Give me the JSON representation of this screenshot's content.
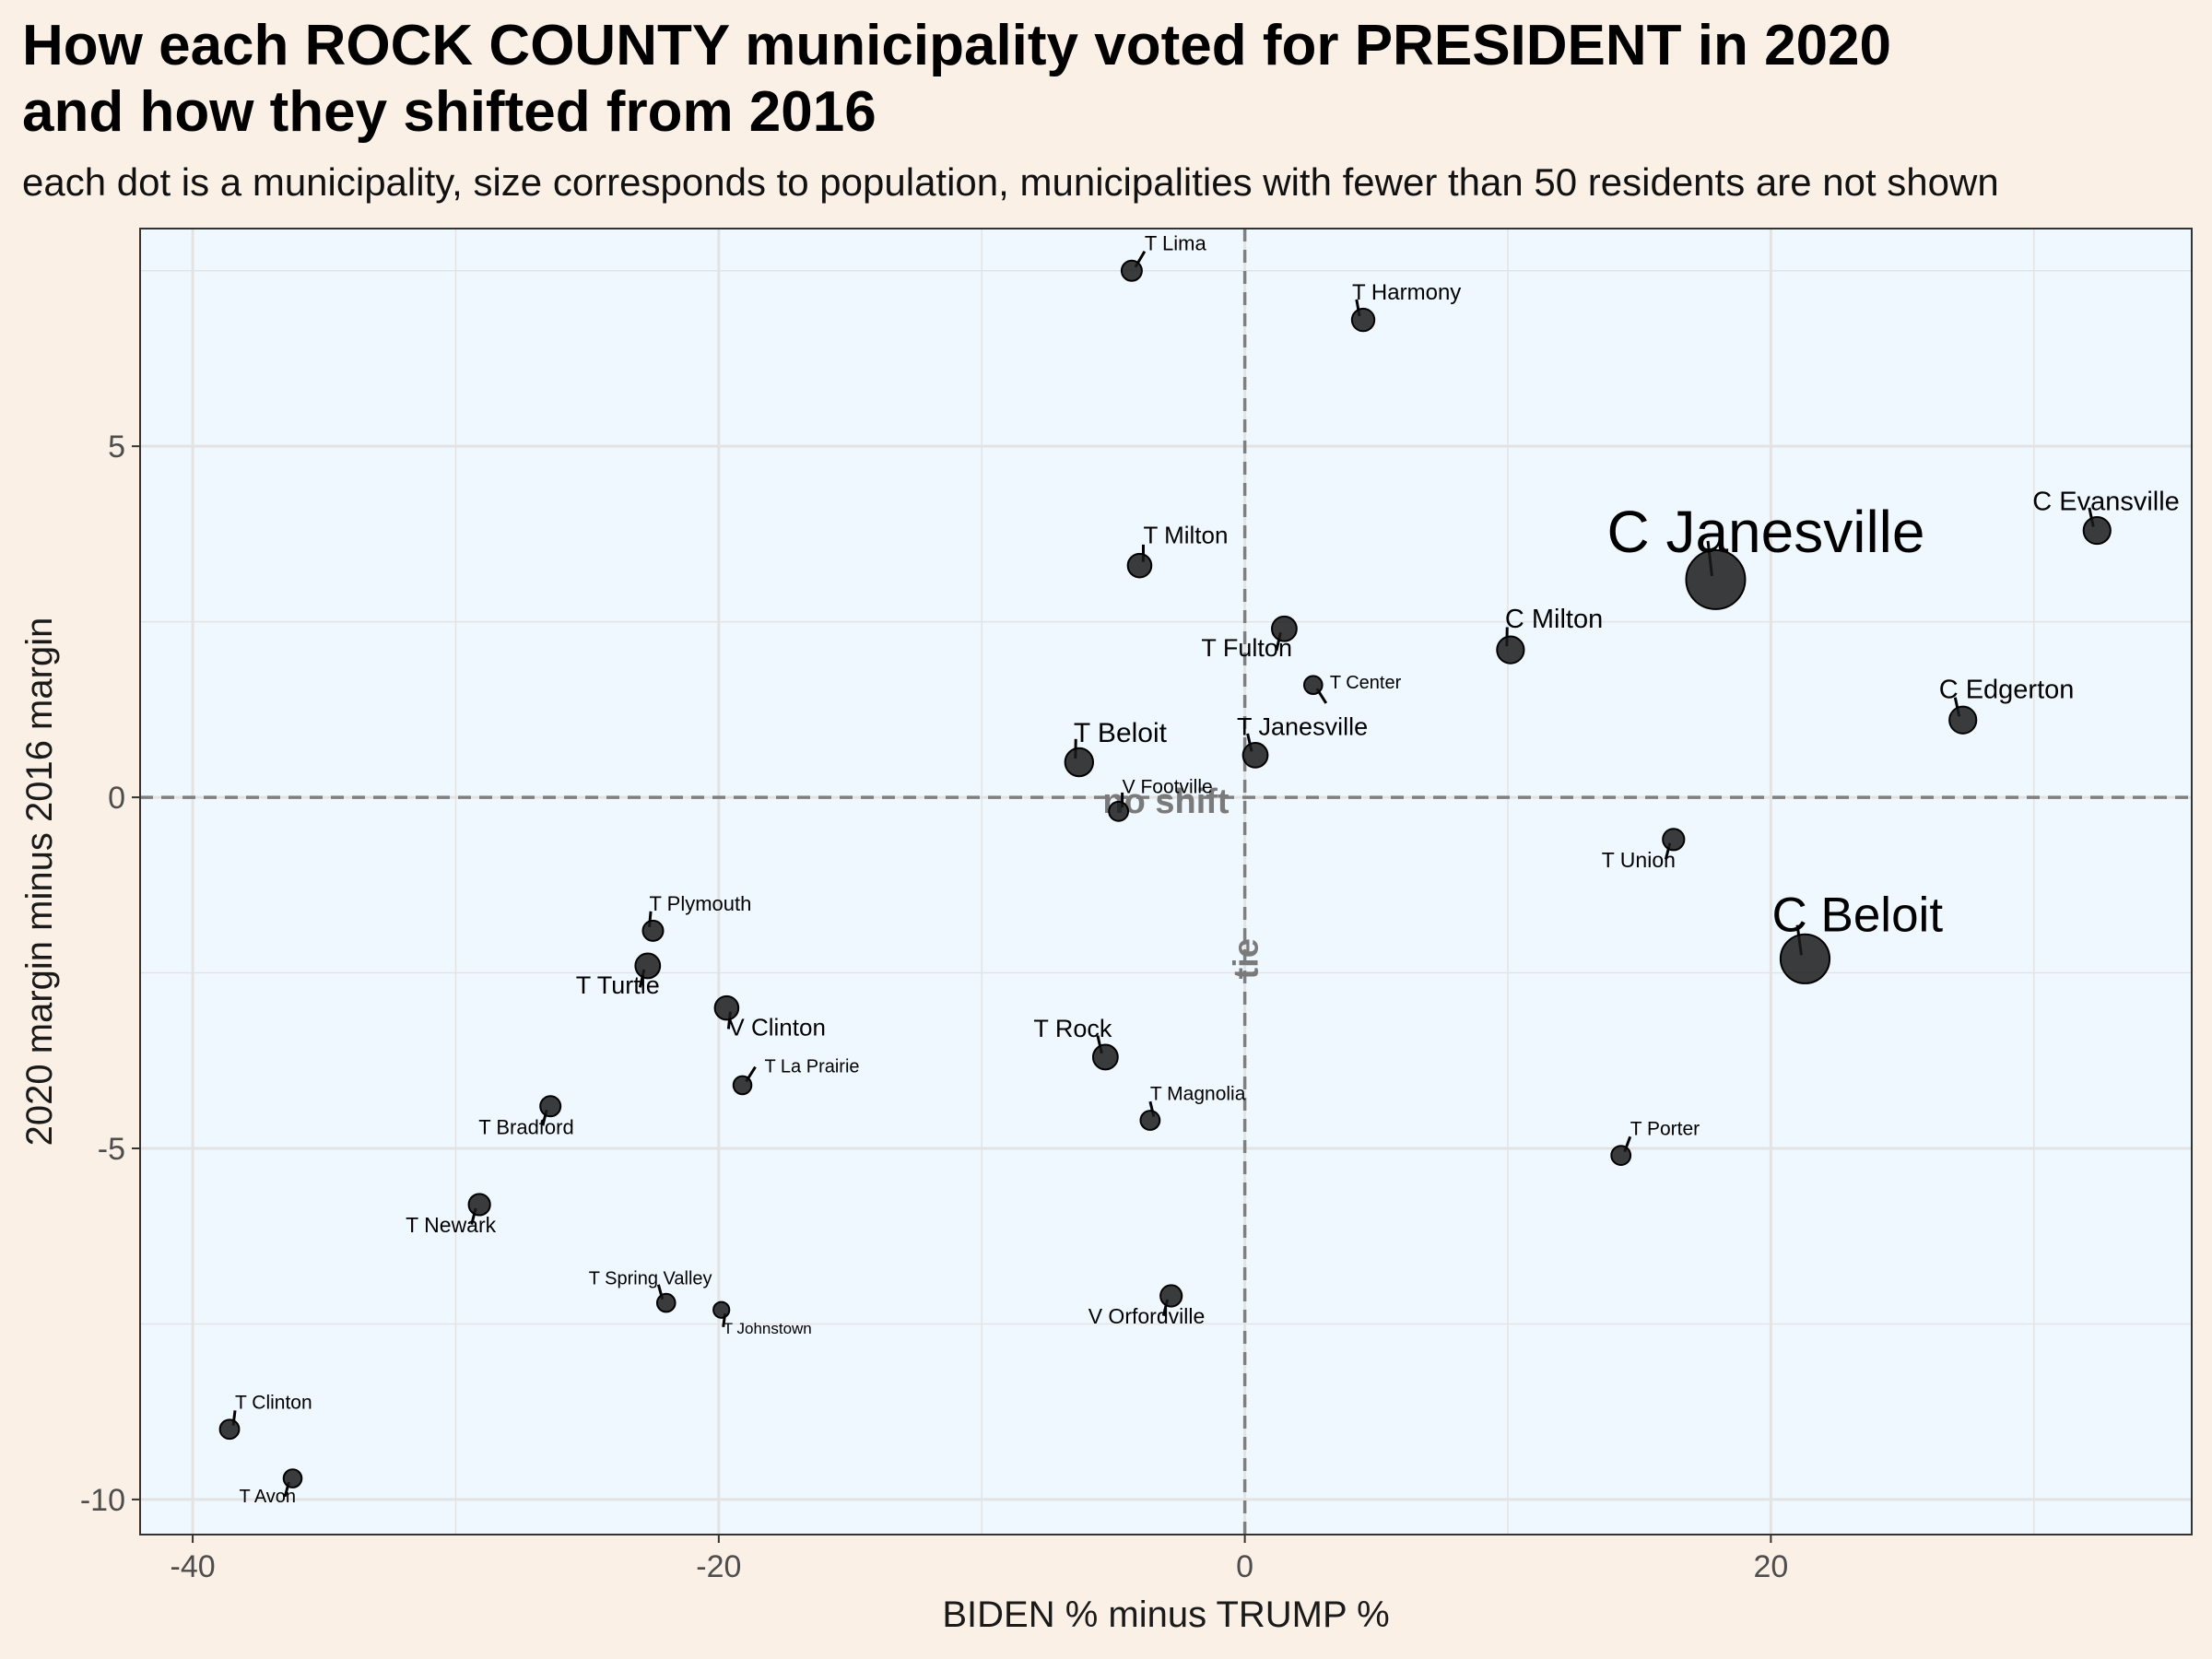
{
  "chart_data": {
    "type": "scatter",
    "title_lines": [
      "How each ROCK COUNTY municipality voted for PRESIDENT in 2020",
      "and how they shifted from 2016"
    ],
    "subtitle": "each dot is a municipality, size corresponds to population, municipalities with fewer than 50 residents are not shown",
    "xlabel": "BIDEN % minus TRUMP %",
    "ylabel": "2020 margin minus 2016 margin",
    "xlim": [
      -42,
      36
    ],
    "ylim": [
      -10.5,
      8.1
    ],
    "x_ticks": [
      -40,
      -20,
      0,
      20
    ],
    "y_ticks": [
      -10,
      -5,
      0,
      5
    ],
    "x_tick_labels": [
      "-40",
      "-20",
      "0",
      "20"
    ],
    "y_tick_labels": [
      "-10",
      "-5",
      "0",
      "5"
    ],
    "grid": true,
    "colors": {
      "background": "#faf0e6",
      "panel": "#f0f8ff",
      "point": "#1a1a1a",
      "reference_line": "#7f7f7f"
    },
    "reference_lines": {
      "vertical": {
        "x": 0,
        "label": "tie"
      },
      "horizontal": {
        "y": 0,
        "label": "no shift"
      }
    },
    "points": [
      {
        "name": "T Lima",
        "x": -4.3,
        "y": 7.5,
        "size": 1
      },
      {
        "name": "T Harmony",
        "x": 4.5,
        "y": 6.8,
        "size": 1.2
      },
      {
        "name": "T Milton",
        "x": -4.0,
        "y": 3.3,
        "size": 1.3
      },
      {
        "name": "C Janesville",
        "x": 17.9,
        "y": 3.1,
        "size": 4.5
      },
      {
        "name": "C Evansville",
        "x": 32.4,
        "y": 3.8,
        "size": 1.6
      },
      {
        "name": "T Fulton",
        "x": 1.5,
        "y": 2.4,
        "size": 1.4
      },
      {
        "name": "C Milton",
        "x": 10.1,
        "y": 2.1,
        "size": 1.6
      },
      {
        "name": "T Center",
        "x": 2.6,
        "y": 1.6,
        "size": 0.8
      },
      {
        "name": "C Edgerton",
        "x": 27.3,
        "y": 1.1,
        "size": 1.6
      },
      {
        "name": "T Beloit",
        "x": -6.3,
        "y": 0.5,
        "size": 1.7
      },
      {
        "name": "T Janesville",
        "x": 0.4,
        "y": 0.6,
        "size": 1.4
      },
      {
        "name": "V Footville",
        "x": -4.8,
        "y": -0.2,
        "size": 0.9
      },
      {
        "name": "T Union",
        "x": 16.3,
        "y": -0.6,
        "size": 1.1
      },
      {
        "name": "C Beloit",
        "x": 21.3,
        "y": -2.3,
        "size": 3.6
      },
      {
        "name": "T Plymouth",
        "x": -22.5,
        "y": -1.9,
        "size": 1
      },
      {
        "name": "T Turtle",
        "x": -22.7,
        "y": -2.4,
        "size": 1.4
      },
      {
        "name": "V Clinton",
        "x": -19.7,
        "y": -3.0,
        "size": 1.3
      },
      {
        "name": "T Rock",
        "x": -5.3,
        "y": -3.7,
        "size": 1.4
      },
      {
        "name": "T La Prairie",
        "x": -19.1,
        "y": -4.1,
        "size": 0.8
      },
      {
        "name": "T Magnolia",
        "x": -3.6,
        "y": -4.6,
        "size": 0.9
      },
      {
        "name": "T Bradford",
        "x": -26.4,
        "y": -4.4,
        "size": 1
      },
      {
        "name": "T Porter",
        "x": 14.3,
        "y": -5.1,
        "size": 0.9
      },
      {
        "name": "T Newark",
        "x": -29.1,
        "y": -5.8,
        "size": 1.1
      },
      {
        "name": "T Spring Valley",
        "x": -22.0,
        "y": -7.2,
        "size": 0.8
      },
      {
        "name": "T Johnstown",
        "x": -19.9,
        "y": -7.3,
        "size": 0.6
      },
      {
        "name": "V Orfordville",
        "x": -2.8,
        "y": -7.1,
        "size": 1.1
      },
      {
        "name": "T Clinton",
        "x": -38.6,
        "y": -9.0,
        "size": 0.9
      },
      {
        "name": "T Avon",
        "x": -36.2,
        "y": -9.7,
        "size": 0.8
      }
    ]
  }
}
